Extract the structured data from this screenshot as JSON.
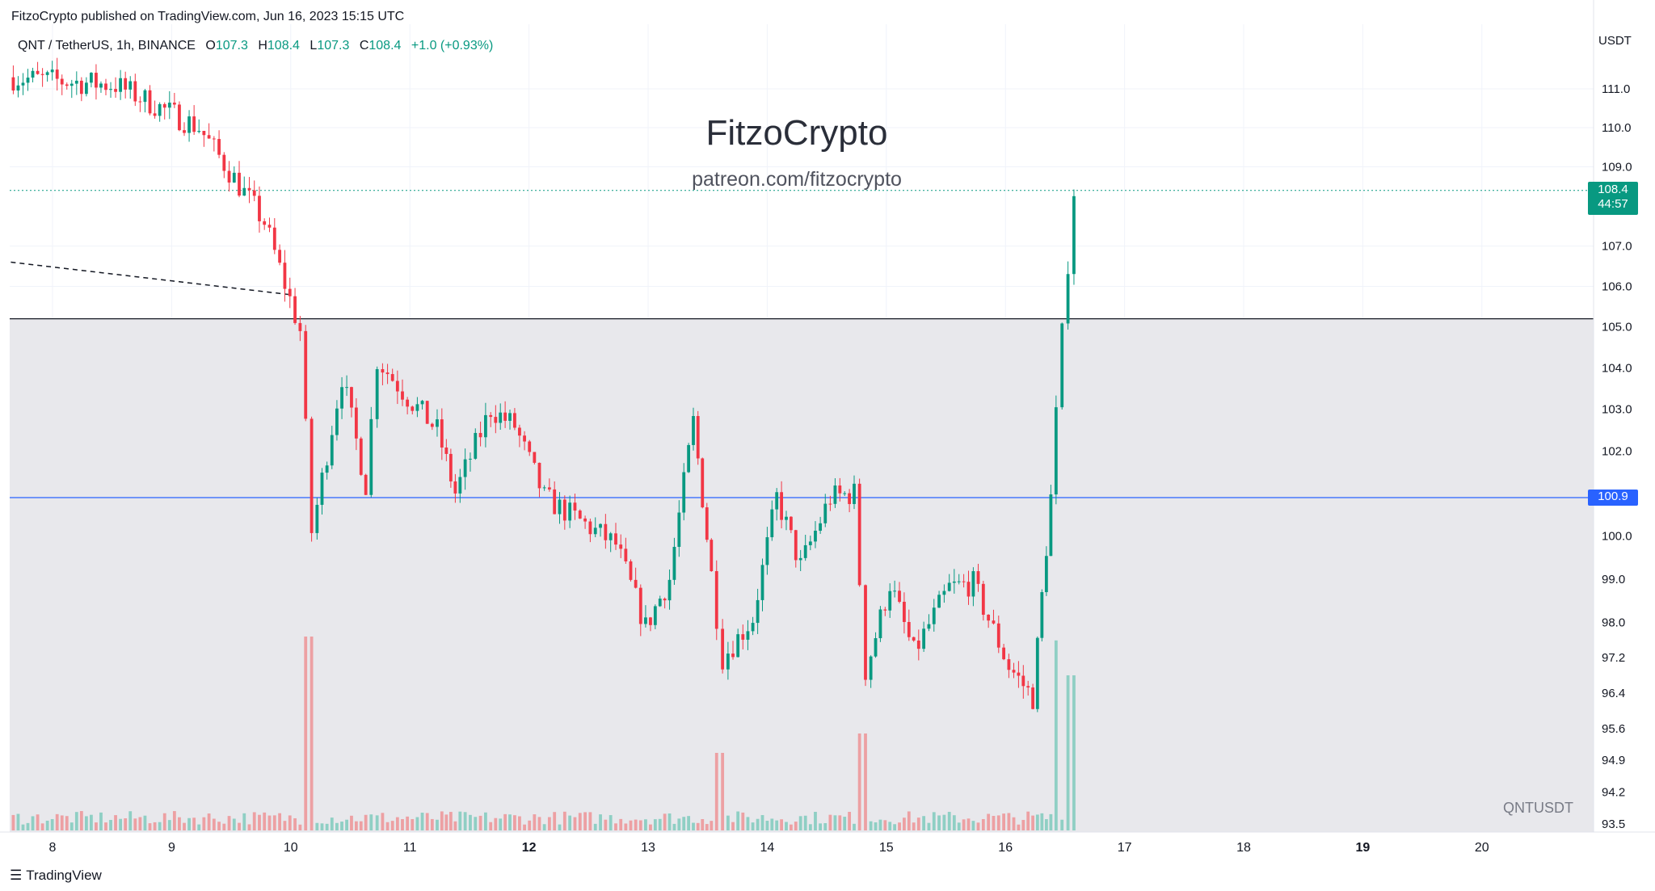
{
  "header": {
    "published_by": "FitzoCrypto published on TradingView.com, Jun 16, 2023 15:15 UTC"
  },
  "legend": {
    "symbol": "QNT / TetherUS, 1h, BINANCE",
    "open_label": "O",
    "open": "107.3",
    "high_label": "H",
    "high": "108.4",
    "low_label": "L",
    "low": "107.3",
    "close_label": "C",
    "close": "108.4",
    "change": "+1.0 (+0.93%)"
  },
  "watermark": {
    "title": "FitzoCrypto",
    "subtitle": "patreon.com/fitzocrypto"
  },
  "symbol_label": "QNTUSDT",
  "currency": "USDT",
  "last_price_tag": {
    "price": "108.4",
    "countdown": "44:57"
  },
  "level_tag": {
    "price": "100.9"
  },
  "footer": {
    "brand": "TradingView"
  },
  "colors": {
    "up": "#089981",
    "down": "#f23645",
    "up_volume": "#8fcfc4",
    "down_volume": "#eda0a3",
    "zone": "#e8e8ec",
    "blue_line": "#2962ff",
    "black_line": "#131722"
  },
  "chart_data": {
    "type": "candlestick",
    "title": "QNT / TetherUS, 1h, BINANCE",
    "x_tick_labels": [
      "8",
      "9",
      "10",
      "11",
      "12",
      "13",
      "14",
      "15",
      "16",
      "17",
      "18",
      "19",
      "20"
    ],
    "bold_x_ticks": [
      "12",
      "19"
    ],
    "y_tick_labels": [
      "111.0",
      "110.0",
      "109.0",
      "107.0",
      "106.0",
      "105.0",
      "104.0",
      "103.0",
      "102.0",
      "100.0",
      "99.0",
      "98.0",
      "97.2",
      "96.4",
      "95.6",
      "94.9",
      "94.2",
      "93.5"
    ],
    "y_scale": "log",
    "ylim": [
      93.5,
      111.6
    ],
    "x_range_days": [
      7.65,
      20.95
    ],
    "current_price": 108.4,
    "horizontal_levels": [
      {
        "price": 105.2,
        "color": "#131722"
      },
      {
        "price": 100.9,
        "color": "#2962ff"
      }
    ],
    "shaded_zone": {
      "from": 93.5,
      "to": 105.2
    },
    "trend_line": [
      {
        "day": 7.65,
        "price": 106.6
      },
      {
        "day": 9.98,
        "price": 105.8
      }
    ],
    "segments": [
      {
        "start_day": 7.65,
        "end_day": 8.55,
        "start_price": 111.3,
        "end_price": 111.1
      },
      {
        "start_day": 8.55,
        "end_day": 9.25,
        "start_price": 111.1,
        "end_price": 110.0
      },
      {
        "start_day": 9.25,
        "end_day": 9.8,
        "start_price": 110.0,
        "end_price": 107.6
      },
      {
        "start_day": 9.8,
        "end_day": 10.1,
        "start_price": 107.6,
        "end_price": 104.9
      },
      {
        "start_day": 10.1,
        "end_day": 10.2,
        "start_price": 104.9,
        "end_price": 100.1
      },
      {
        "start_day": 10.2,
        "end_day": 10.45,
        "start_price": 100.1,
        "end_price": 103.8
      },
      {
        "start_day": 10.45,
        "end_day": 10.65,
        "start_price": 103.8,
        "end_price": 101.2
      },
      {
        "start_day": 10.65,
        "end_day": 10.75,
        "start_price": 101.2,
        "end_price": 104.2
      },
      {
        "start_day": 10.75,
        "end_day": 11.0,
        "start_price": 104.2,
        "end_price": 103.3
      },
      {
        "start_day": 11.0,
        "end_day": 11.25,
        "start_price": 103.3,
        "end_price": 102.5
      },
      {
        "start_day": 11.25,
        "end_day": 11.4,
        "start_price": 102.5,
        "end_price": 101.0
      },
      {
        "start_day": 11.4,
        "end_day": 11.7,
        "start_price": 101.0,
        "end_price": 103.0
      },
      {
        "start_day": 11.7,
        "end_day": 11.9,
        "start_price": 103.0,
        "end_price": 102.6
      },
      {
        "start_day": 11.9,
        "end_day": 12.15,
        "start_price": 102.6,
        "end_price": 100.9
      },
      {
        "start_day": 12.15,
        "end_day": 12.75,
        "start_price": 100.9,
        "end_price": 99.8
      },
      {
        "start_day": 12.75,
        "end_day": 13.0,
        "start_price": 99.8,
        "end_price": 97.9
      },
      {
        "start_day": 13.0,
        "end_day": 13.2,
        "start_price": 97.9,
        "end_price": 99.0
      },
      {
        "start_day": 13.2,
        "end_day": 13.4,
        "start_price": 99.0,
        "end_price": 102.7
      },
      {
        "start_day": 13.4,
        "end_day": 13.55,
        "start_price": 102.7,
        "end_price": 99.1
      },
      {
        "start_day": 13.55,
        "end_day": 13.65,
        "start_price": 99.1,
        "end_price": 97.2
      },
      {
        "start_day": 13.65,
        "end_day": 13.9,
        "start_price": 97.2,
        "end_price": 98.1
      },
      {
        "start_day": 13.9,
        "end_day": 14.1,
        "start_price": 98.1,
        "end_price": 100.9
      },
      {
        "start_day": 14.1,
        "end_day": 14.3,
        "start_price": 100.9,
        "end_price": 99.3
      },
      {
        "start_day": 14.3,
        "end_day": 14.55,
        "start_price": 99.3,
        "end_price": 100.9
      },
      {
        "start_day": 14.55,
        "end_day": 14.75,
        "start_price": 100.9,
        "end_price": 101.0
      },
      {
        "start_day": 14.75,
        "end_day": 14.85,
        "start_price": 101.0,
        "end_price": 96.9
      },
      {
        "start_day": 14.85,
        "end_day": 15.05,
        "start_price": 96.9,
        "end_price": 98.9
      },
      {
        "start_day": 15.05,
        "end_day": 15.25,
        "start_price": 98.9,
        "end_price": 97.3
      },
      {
        "start_day": 15.25,
        "end_day": 15.55,
        "start_price": 97.3,
        "end_price": 98.8
      },
      {
        "start_day": 15.55,
        "end_day": 15.75,
        "start_price": 98.8,
        "end_price": 98.9
      },
      {
        "start_day": 15.75,
        "end_day": 16.05,
        "start_price": 98.9,
        "end_price": 97.0
      },
      {
        "start_day": 16.05,
        "end_day": 16.25,
        "start_price": 97.0,
        "end_price": 96.3
      },
      {
        "start_day": 16.25,
        "end_day": 16.4,
        "start_price": 96.3,
        "end_price": 100.9
      },
      {
        "start_day": 16.4,
        "end_day": 16.5,
        "start_price": 100.9,
        "end_price": 104.8
      },
      {
        "start_day": 16.5,
        "end_day": 16.6,
        "start_price": 104.8,
        "end_price": 108.4
      }
    ],
    "volume_spikes": [
      {
        "day": 10.15,
        "relative_volume": 1.0
      },
      {
        "day": 13.6,
        "relative_volume": 0.4
      },
      {
        "day": 14.8,
        "relative_volume": 0.5
      },
      {
        "day": 16.42,
        "relative_volume": 0.98
      },
      {
        "day": 16.55,
        "relative_volume": 0.8
      }
    ]
  }
}
